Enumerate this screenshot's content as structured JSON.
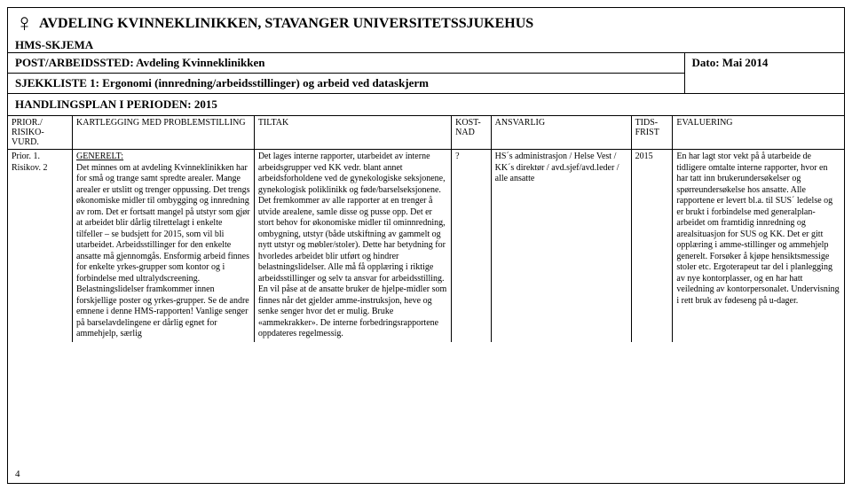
{
  "header": {
    "venus_symbol": "♀",
    "title": "AVDELING KVINNEKLINIKKEN, STAVANGER UNIVERSITETSSJUKEHUS",
    "hms": "HMS-SKJEMA",
    "post_label": "POST/ARBEIDSSTED: Avdeling Kvinneklinikken",
    "dato": "Dato: Mai 2014",
    "sjekkliste": "SJEKKLISTE 1: Ergonomi (innredning/arbeidsstillinger) og arbeid ved dataskjerm",
    "plan": "HANDLINGSPLAN I PERIODEN: 2015"
  },
  "columns": {
    "prior": "PRIOR./ RISIKO-VURD.",
    "kart": "KARTLEGGING MED PROBLEMSTILLING",
    "tiltak": "TILTAK",
    "kost": "KOST-NAD",
    "ansv": "ANSVARLIG",
    "tids": "TIDS-FRIST",
    "eval": "EVALUERING"
  },
  "row": {
    "prior": "Prior. 1. Risikov. 2",
    "kart_head": "GENERELT:",
    "kart": "Det minnes om at avdeling Kvinneklinikken har for små og trange samt spredte arealer. Mange arealer er utslitt og trenger oppussing. Det trengs økonomiske midler til ombygging og innredning av rom. Det er fortsatt mangel på utstyr som gjør at arbeidet blir dårlig tilrettelagt i enkelte tilfeller – se budsjett for 2015, som vil bli utarbeidet. Arbeidsstillinger for den enkelte ansatte må gjennomgås. Ensformig arbeid finnes for enkelte yrkes-grupper som kontor og i forbindelse med ultralydscreening. Belastningslidelser framkommer innen forskjellige poster og yrkes-grupper. Se de andre emnene i denne HMS-rapporten! Vanlige senger på barselavdelingene er dårlig egnet for ammehjelp, særlig",
    "tiltak": "Det lages interne rapporter, utarbeidet av interne arbeidsgrupper ved KK vedr. blant annet arbeidsforholdene ved de gynekologiske seksjonene, gynekologisk poliklinikk og føde/barselseksjonene. Det fremkommer av alle rapporter at en trenger å utvide arealene, samle disse og pusse opp. Det er stort behov for økonomiske midler til ominnredning, ombygning, utstyr (både utskiftning av gammelt og nytt utstyr og møbler/stoler). Dette har betydning for hvorledes arbeidet blir utført og hindrer belastningslidelser. Alle må få opplæring i riktige arbeidsstillinger og selv ta ansvar for arbeidsstilling. En vil påse at de ansatte bruker de hjelpe-midler som finnes når det gjelder amme-instruksjon, heve og senke senger hvor det er mulig. Bruke «ammekrakker». De interne forbedringsrapportene oppdateres regelmessig.",
    "kost": "?",
    "ansv": "HS´s administrasjon / Helse Vest / KK´s direktør / avd.sjef/avd.leder / alle ansatte",
    "tids": "2015",
    "eval": "En har lagt stor vekt på å utarbeide de tidligere omtalte interne rapporter, hvor en har tatt inn brukerundersøkelser og spørreundersøkelse hos ansatte. Alle rapportene er levert bl.a. til SUS´ ledelse og er brukt i forbindelse med generalplan-arbeidet om framtidig innredning og arealsituasjon for SUS og KK. Det er gitt opplæring i amme-stillinger og ammehjelp generelt. Forsøker å kjøpe hensiktsmessige stoler etc. Ergoterapeut tar del i planlegging av nye kontorplasser, og en har hatt veiledning av kontorpersonalet. Undervisning i rett bruk av fødeseng på u-dager."
  },
  "page_number": "4"
}
